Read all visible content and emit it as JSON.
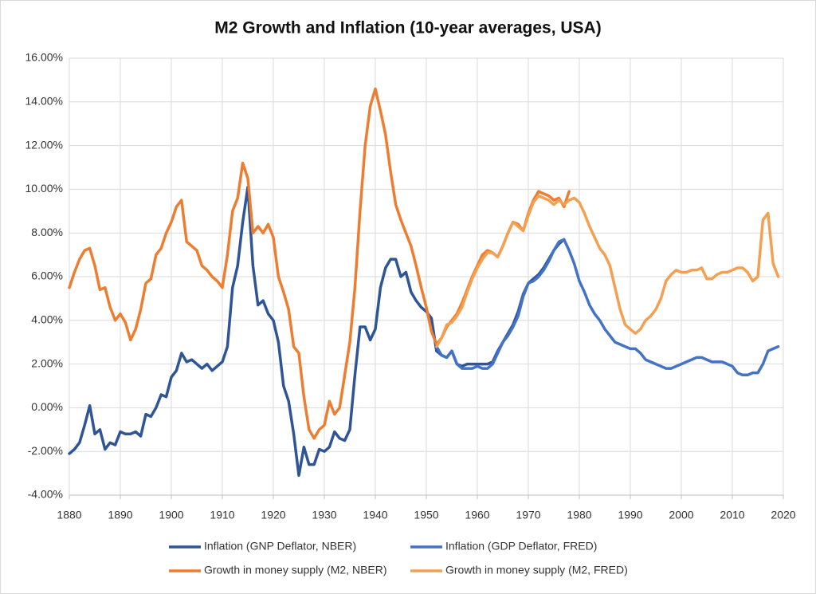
{
  "chart_data": {
    "type": "line",
    "title": "M2 Growth and Inflation (10-year averages, USA)",
    "xlim": [
      1880,
      2020
    ],
    "xticks": [
      1880,
      1890,
      1900,
      1910,
      1920,
      1930,
      1940,
      1950,
      1960,
      1970,
      1980,
      1990,
      2000,
      2010,
      2020
    ],
    "ylim": [
      -4,
      16
    ],
    "yticks": [
      {
        "value": -4,
        "label": "-4.00%"
      },
      {
        "value": -2,
        "label": "-2.00%"
      },
      {
        "value": 0,
        "label": "0.00%"
      },
      {
        "value": 2,
        "label": "2.00%"
      },
      {
        "value": 4,
        "label": "4.00%"
      },
      {
        "value": 6,
        "label": "6.00%"
      },
      {
        "value": 8,
        "label": "8.00%"
      },
      {
        "value": 10,
        "label": "10.00%"
      },
      {
        "value": 12,
        "label": "12.00%"
      },
      {
        "value": 14,
        "label": "14.00%"
      },
      {
        "value": 16,
        "label": "16.00%"
      }
    ],
    "grid": true,
    "legend": "bottom",
    "series": [
      {
        "name": "Inflation (GNP Deflator, NBER)",
        "color": "#2f5597",
        "x": [
          1880,
          1881,
          1882,
          1883,
          1884,
          1885,
          1886,
          1887,
          1888,
          1889,
          1890,
          1891,
          1892,
          1893,
          1894,
          1895,
          1896,
          1897,
          1898,
          1899,
          1900,
          1901,
          1902,
          1903,
          1904,
          1905,
          1906,
          1907,
          1908,
          1909,
          1910,
          1911,
          1912,
          1913,
          1914,
          1915,
          1916,
          1917,
          1918,
          1919,
          1920,
          1921,
          1922,
          1923,
          1924,
          1925,
          1926,
          1927,
          1928,
          1929,
          1930,
          1931,
          1932,
          1933,
          1934,
          1935,
          1936,
          1937,
          1938,
          1939,
          1940,
          1941,
          1942,
          1943,
          1944,
          1945,
          1946,
          1947,
          1948,
          1949,
          1950,
          1951,
          1952,
          1953,
          1954,
          1955,
          1956,
          1957,
          1958,
          1959,
          1960,
          1961,
          1962,
          1963,
          1964,
          1965,
          1966,
          1967,
          1968,
          1969,
          1970,
          1971,
          1972,
          1973,
          1974,
          1975,
          1976,
          1977
        ],
        "values": [
          -2.1,
          -1.9,
          -1.6,
          -0.8,
          0.1,
          -1.2,
          -1.0,
          -1.9,
          -1.6,
          -1.7,
          -1.1,
          -1.2,
          -1.2,
          -1.1,
          -1.3,
          -0.3,
          -0.4,
          0.0,
          0.6,
          0.5,
          1.4,
          1.7,
          2.5,
          2.1,
          2.2,
          2.0,
          1.8,
          2.0,
          1.7,
          1.9,
          2.1,
          2.8,
          5.5,
          6.5,
          8.5,
          10.1,
          6.5,
          4.7,
          4.9,
          4.3,
          4.0,
          3.0,
          1.0,
          0.3,
          -1.2,
          -3.1,
          -1.8,
          -2.6,
          -2.6,
          -1.9,
          -2.0,
          -1.8,
          -1.1,
          -1.4,
          -1.5,
          -1.0,
          1.5,
          3.7,
          3.7,
          3.1,
          3.6,
          5.5,
          6.4,
          6.8,
          6.8,
          6.0,
          6.2,
          5.3,
          4.9,
          4.6,
          4.4,
          4.1,
          2.6,
          2.4,
          2.3,
          2.6,
          2.0,
          1.9,
          2.0,
          2.0,
          2.0,
          2.0,
          2.0,
          2.1,
          2.6,
          3.0,
          3.4,
          3.8,
          4.4,
          5.2,
          5.7,
          5.9,
          6.1,
          6.4,
          6.8,
          7.2,
          7.5,
          7.7
        ]
      },
      {
        "name": "Inflation (GDP Deflator, FRED)",
        "color": "#4472c4",
        "x": [
          1952,
          1953,
          1954,
          1955,
          1956,
          1957,
          1958,
          1959,
          1960,
          1961,
          1962,
          1963,
          1964,
          1965,
          1966,
          1967,
          1968,
          1969,
          1970,
          1971,
          1972,
          1973,
          1974,
          1975,
          1976,
          1977,
          1978,
          1979,
          1980,
          1981,
          1982,
          1983,
          1984,
          1985,
          1986,
          1987,
          1988,
          1989,
          1990,
          1991,
          1992,
          1993,
          1994,
          1995,
          1996,
          1997,
          1998,
          1999,
          2000,
          2001,
          2002,
          2003,
          2004,
          2005,
          2006,
          2007,
          2008,
          2009,
          2010,
          2011,
          2012,
          2013,
          2014,
          2015,
          2016,
          2017,
          2018,
          2019
        ],
        "values": [
          2.8,
          2.4,
          2.3,
          2.6,
          2.0,
          1.8,
          1.8,
          1.8,
          1.9,
          1.8,
          1.8,
          2.0,
          2.5,
          3.0,
          3.3,
          3.7,
          4.2,
          5.1,
          5.7,
          5.8,
          6.0,
          6.3,
          6.7,
          7.2,
          7.6,
          7.7,
          7.2,
          6.6,
          5.8,
          5.3,
          4.7,
          4.3,
          4.0,
          3.6,
          3.3,
          3.0,
          2.9,
          2.8,
          2.7,
          2.7,
          2.5,
          2.2,
          2.1,
          2.0,
          1.9,
          1.8,
          1.8,
          1.9,
          2.0,
          2.1,
          2.2,
          2.3,
          2.3,
          2.2,
          2.1,
          2.1,
          2.1,
          2.0,
          1.9,
          1.6,
          1.5,
          1.5,
          1.6,
          1.6,
          2.0,
          2.6,
          2.7,
          2.8
        ]
      },
      {
        "name": "Growth in money supply (M2, NBER)",
        "color": "#ed7d31",
        "x": [
          1880,
          1881,
          1882,
          1883,
          1884,
          1885,
          1886,
          1887,
          1888,
          1889,
          1890,
          1891,
          1892,
          1893,
          1894,
          1895,
          1896,
          1897,
          1898,
          1899,
          1900,
          1901,
          1902,
          1903,
          1904,
          1905,
          1906,
          1907,
          1908,
          1909,
          1910,
          1911,
          1912,
          1913,
          1914,
          1915,
          1916,
          1917,
          1918,
          1919,
          1920,
          1921,
          1922,
          1923,
          1924,
          1925,
          1926,
          1927,
          1928,
          1929,
          1930,
          1931,
          1932,
          1933,
          1934,
          1935,
          1936,
          1937,
          1938,
          1939,
          1940,
          1941,
          1942,
          1943,
          1944,
          1945,
          1946,
          1947,
          1948,
          1949,
          1950,
          1951,
          1952,
          1953,
          1954,
          1955,
          1956,
          1957,
          1958,
          1959,
          1960,
          1961,
          1962,
          1963,
          1964,
          1965,
          1966,
          1967,
          1968,
          1969,
          1970,
          1971,
          1972,
          1973,
          1974,
          1975,
          1976,
          1977,
          1978
        ],
        "values": [
          5.5,
          6.2,
          6.8,
          7.2,
          7.3,
          6.5,
          5.4,
          5.5,
          4.6,
          4.0,
          4.3,
          3.9,
          3.1,
          3.6,
          4.5,
          5.7,
          5.9,
          7.0,
          7.3,
          8.0,
          8.5,
          9.2,
          9.5,
          7.6,
          7.4,
          7.2,
          6.5,
          6.3,
          6.0,
          5.8,
          5.5,
          7.0,
          9.0,
          9.6,
          11.2,
          10.5,
          8.0,
          8.3,
          8.0,
          8.4,
          7.8,
          6.0,
          5.3,
          4.5,
          2.8,
          2.5,
          0.5,
          -1.0,
          -1.4,
          -1.0,
          -0.8,
          0.3,
          -0.3,
          0.0,
          1.5,
          3.0,
          5.5,
          9.0,
          12.0,
          13.8,
          14.6,
          13.6,
          12.5,
          10.8,
          9.3,
          8.6,
          8.0,
          7.4,
          6.5,
          5.5,
          4.6,
          3.5,
          2.9,
          3.2,
          3.7,
          4.0,
          4.3,
          4.8,
          5.4,
          6.0,
          6.5,
          7.0,
          7.2,
          7.1,
          6.9,
          7.4,
          8.0,
          8.5,
          8.4,
          8.1,
          8.9,
          9.5,
          9.9,
          9.8,
          9.7,
          9.5,
          9.6,
          9.2,
          9.9
        ]
      },
      {
        "name": "Growth in money supply (M2, FRED)",
        "color": "#f4a052",
        "x": [
          1952,
          1953,
          1954,
          1955,
          1956,
          1957,
          1958,
          1959,
          1960,
          1961,
          1962,
          1963,
          1964,
          1965,
          1966,
          1967,
          1968,
          1969,
          1970,
          1971,
          1972,
          1973,
          1974,
          1975,
          1976,
          1977,
          1978,
          1979,
          1980,
          1981,
          1982,
          1983,
          1984,
          1985,
          1986,
          1987,
          1988,
          1989,
          1990,
          1991,
          1992,
          1993,
          1994,
          1995,
          1996,
          1997,
          1998,
          1999,
          2000,
          2001,
          2002,
          2003,
          2004,
          2005,
          2006,
          2007,
          2008,
          2009,
          2010,
          2011,
          2012,
          2013,
          2014,
          2015,
          2016,
          2017,
          2018,
          2019
        ],
        "values": [
          2.8,
          3.2,
          3.8,
          3.9,
          4.2,
          4.6,
          5.3,
          5.9,
          6.4,
          6.8,
          7.1,
          7.1,
          6.9,
          7.4,
          8.0,
          8.5,
          8.3,
          8.1,
          8.8,
          9.4,
          9.7,
          9.6,
          9.5,
          9.3,
          9.5,
          9.3,
          9.5,
          9.6,
          9.4,
          8.9,
          8.3,
          7.8,
          7.3,
          7.0,
          6.5,
          5.5,
          4.5,
          3.8,
          3.6,
          3.4,
          3.6,
          4.0,
          4.2,
          4.5,
          5.0,
          5.8,
          6.1,
          6.3,
          6.2,
          6.2,
          6.3,
          6.3,
          6.4,
          5.9,
          5.9,
          6.1,
          6.2,
          6.2,
          6.3,
          6.4,
          6.4,
          6.2,
          5.8,
          6.0,
          8.6,
          8.9,
          6.6,
          6.0
        ]
      }
    ]
  }
}
